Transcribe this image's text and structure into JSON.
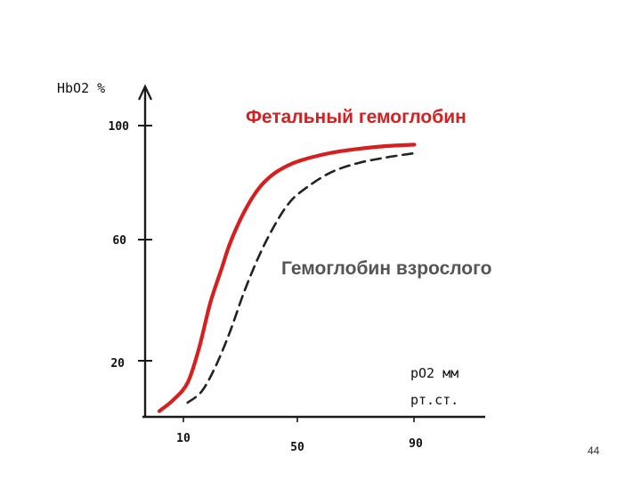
{
  "chart_data": {
    "type": "line",
    "ylabel": "HbO2 %",
    "xlabel_line1": "pO2 мм",
    "xlabel_line2": "рт.ст.",
    "x_ticks": [
      "10",
      "50",
      "90"
    ],
    "y_ticks": [
      "100",
      "60",
      "20"
    ],
    "xlim": [
      -5,
      115
    ],
    "ylim": [
      0,
      115
    ],
    "grid": false,
    "legend": "inline labels",
    "series": [
      {
        "name": "Фетальный гемоглобин",
        "color": "#d62020",
        "style": "solid",
        "x": [
          0,
          5,
          10,
          14,
          18,
          22,
          25,
          30,
          35,
          40,
          45,
          50,
          60,
          70,
          80,
          90
        ],
        "y": [
          2,
          6,
          12,
          24,
          40,
          52,
          61,
          72,
          80,
          85,
          88,
          90,
          92.5,
          94,
          95,
          95.5
        ]
      },
      {
        "name": "Гемоглобин взрослого",
        "color": "#222222",
        "style": "dashed",
        "x": [
          10,
          15,
          20,
          25,
          30,
          35,
          40,
          45,
          50,
          60,
          70,
          80,
          90
        ],
        "y": [
          5,
          9,
          18,
          30,
          44,
          56,
          66,
          74,
          79,
          85.5,
          89,
          91,
          92.5
        ]
      }
    ]
  },
  "page_number": "44"
}
